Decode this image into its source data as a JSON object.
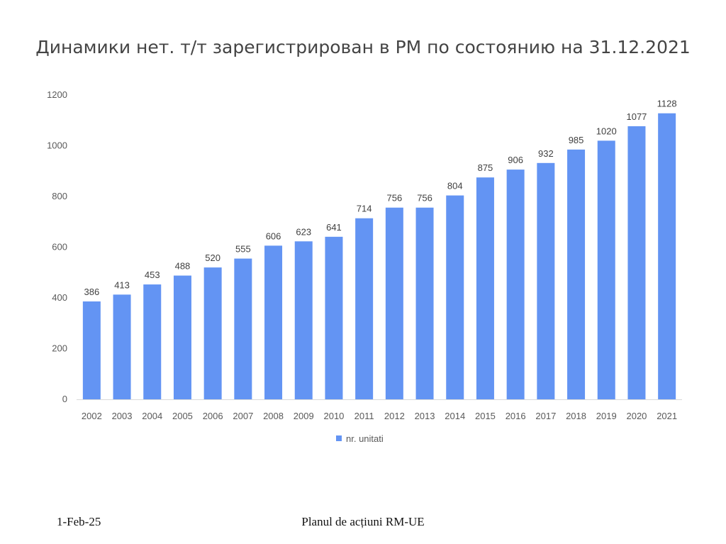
{
  "slide": {
    "footer_date": "1-Feb-25",
    "footer_text": "Planul de acțiuni RM-UE"
  },
  "chart_data": {
    "type": "bar",
    "title": "Динамики нет. т/т зарегистрирован в РМ по состоянию на 31.12.2021",
    "xlabel": "",
    "ylabel": "",
    "ylim": [
      0,
      1200
    ],
    "yticks": [
      0,
      200,
      400,
      600,
      800,
      1000,
      1200
    ],
    "categories": [
      "2002",
      "2003",
      "2004",
      "2005",
      "2006",
      "2007",
      "2008",
      "2009",
      "2010",
      "2011",
      "2012",
      "2013",
      "2014",
      "2015",
      "2016",
      "2017",
      "2018",
      "2019",
      "2020",
      "2021"
    ],
    "series": [
      {
        "name": "nr. unitati",
        "color": "#6394f3",
        "values": [
          386,
          413,
          453,
          488,
          520,
          555,
          606,
          623,
          641,
          714,
          756,
          756,
          804,
          875,
          906,
          932,
          985,
          1020,
          1077,
          1128
        ]
      }
    ],
    "data_labels": true,
    "grid": false,
    "legend_position": "bottom"
  }
}
